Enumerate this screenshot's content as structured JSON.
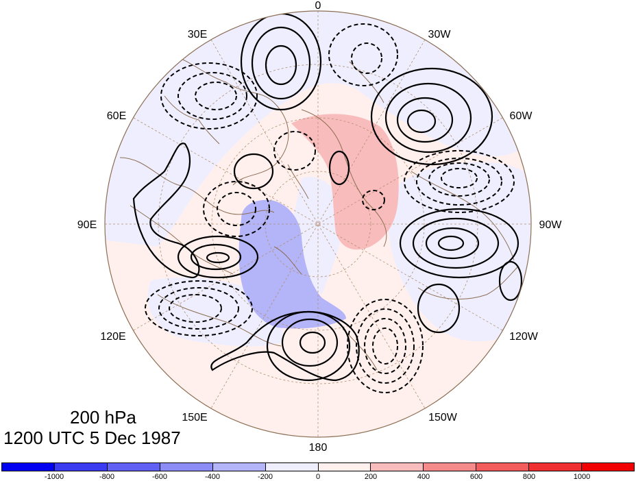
{
  "map": {
    "projection": "north polar stereographic",
    "longitude_labels": {
      "top": "0",
      "upper_left": "30E",
      "upper_right": "30W",
      "left_upper": "60E",
      "right_upper": "60W",
      "left_mid": "90E",
      "right_mid": "90W",
      "left_lower": "120E",
      "right_lower": "120W",
      "lower_left": "150E",
      "lower_right": "150W",
      "bottom": "180"
    },
    "shading_colors": {
      "strong_negative": "#b4b4f8",
      "weak_negative": "#eeeefe",
      "weak_positive": "#fff0ee",
      "strong_positive": "#f9bcbc"
    },
    "contour_style": {
      "positive": "solid black",
      "negative": "dashed black"
    }
  },
  "caption": {
    "level": "200 hPa",
    "time": "1200 UTC 5 Dec 1987"
  },
  "colorbar": {
    "colors": [
      "#0000f0",
      "#3a3af0",
      "#6060f4",
      "#8c8cf6",
      "#b4b4f8",
      "#eeeefe",
      "#fff0ee",
      "#f9bcbc",
      "#f58a8a",
      "#f25c5c",
      "#f03030",
      "#f00000"
    ],
    "labels": [
      "-1000",
      "-800",
      "-600",
      "-400",
      "-200",
      "0",
      "200",
      "400",
      "600",
      "800",
      "1000"
    ]
  }
}
